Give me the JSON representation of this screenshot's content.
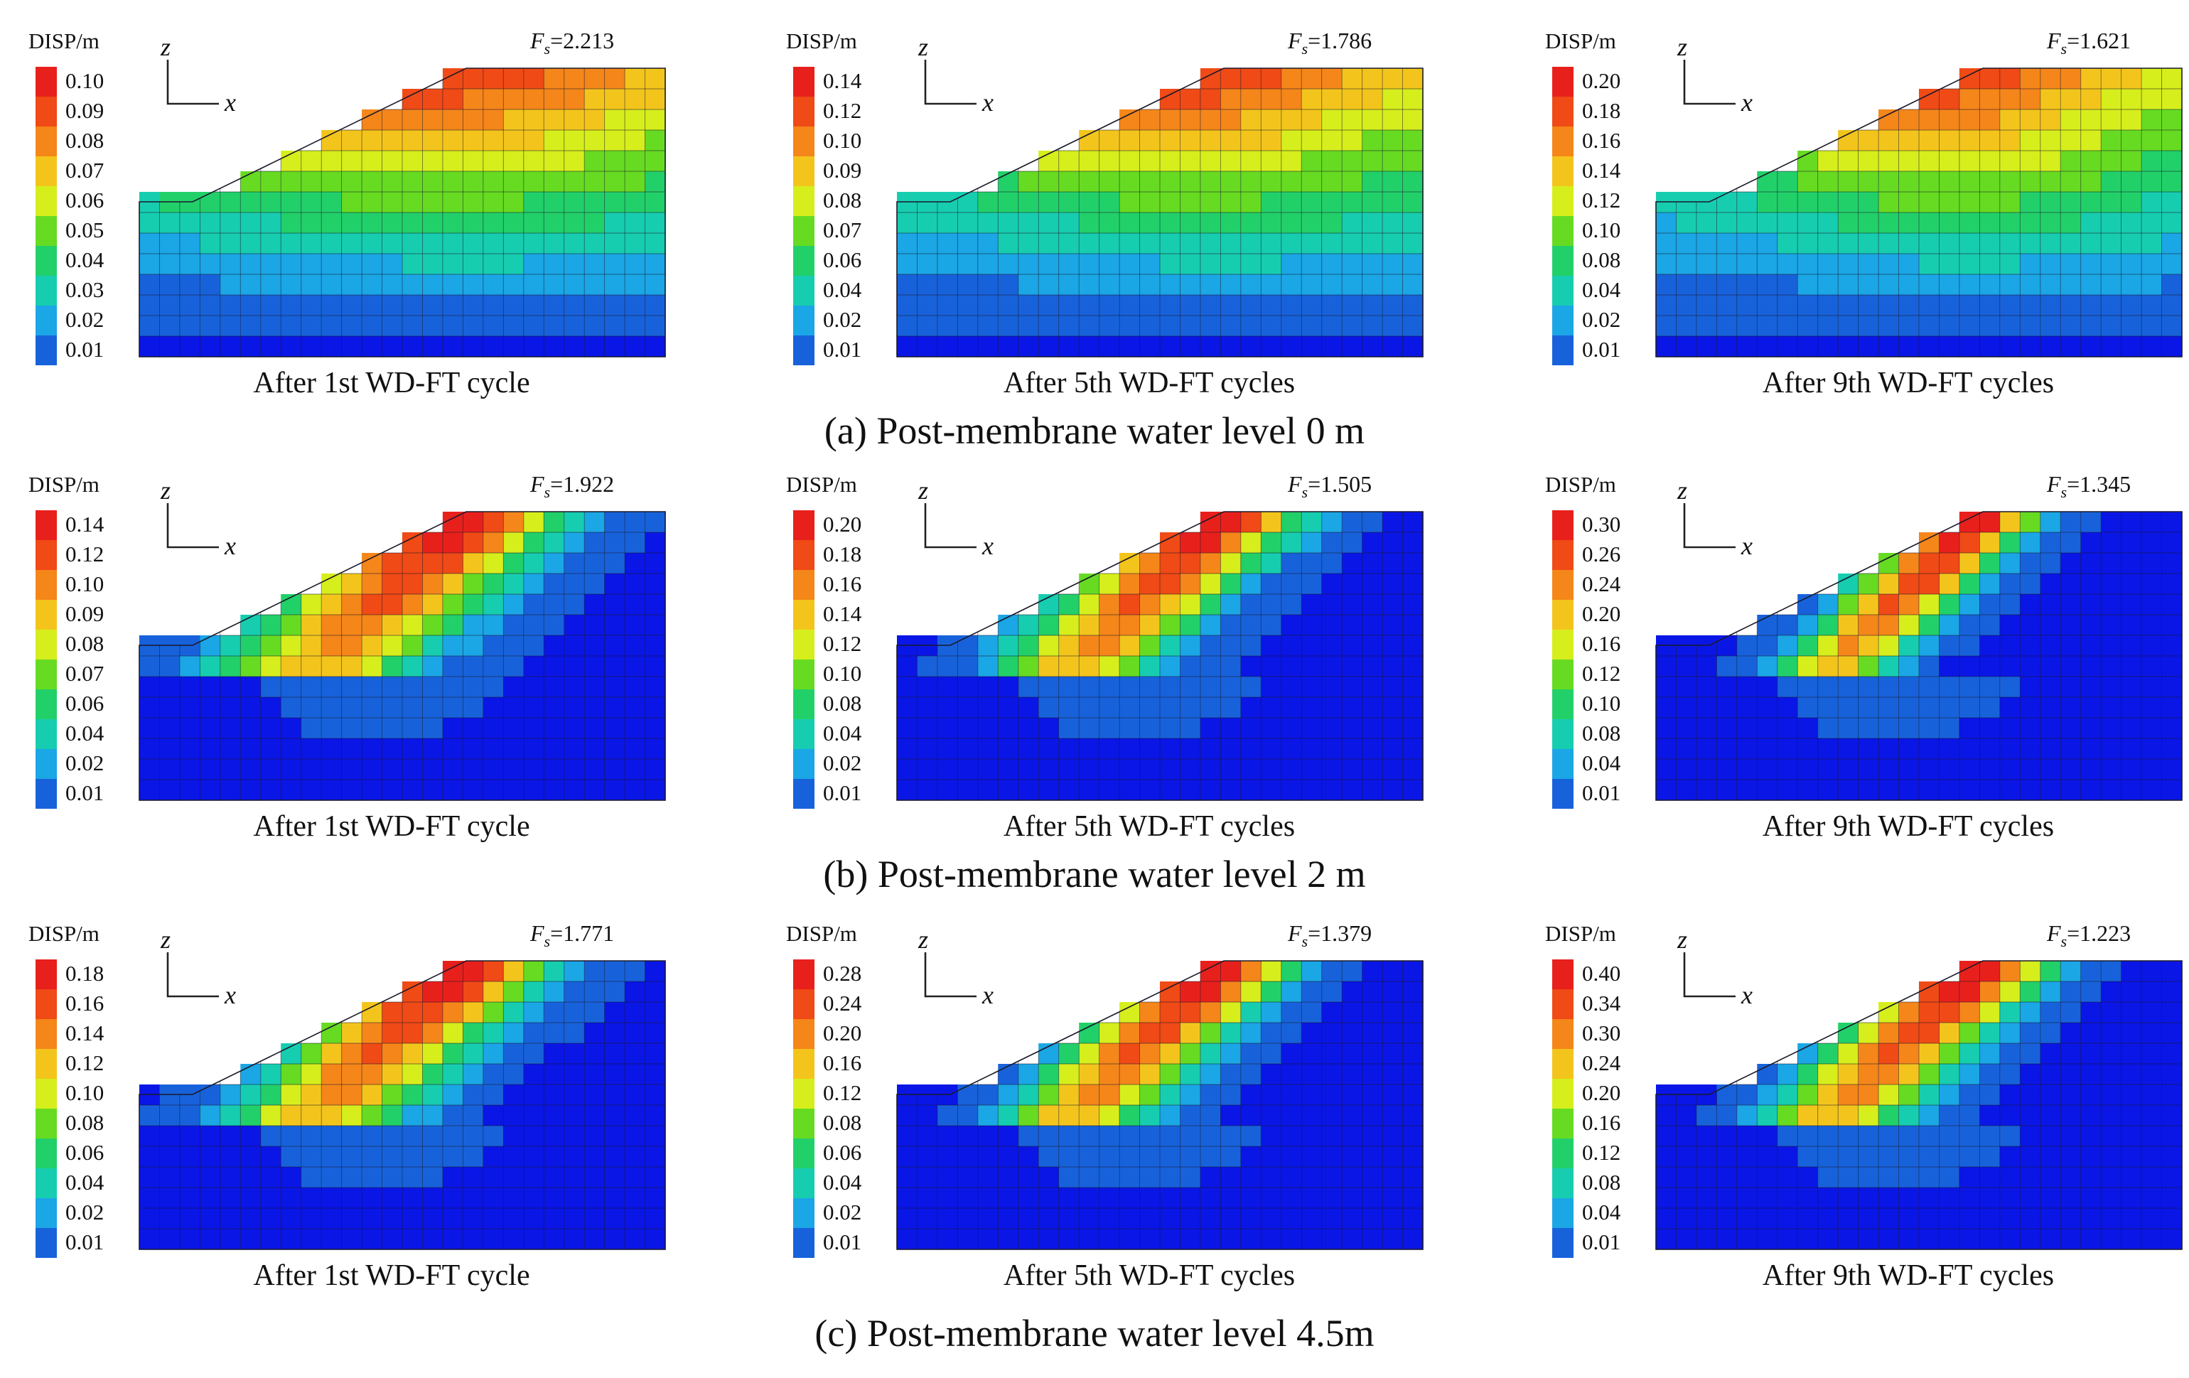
{
  "figure": {
    "rows": [
      {
        "caption": "(a) Post-membrane water level 0 m",
        "panels": [
          {
            "label": "After 1st  WD-FT cycle",
            "fs_symbol": "F",
            "fs_sub": "s",
            "fs_value": "=2.213",
            "legend_title": "DISP/m",
            "legend_ticks": [
              "0.10",
              "0.09",
              "0.08",
              "0.07",
              "0.06",
              "0.05",
              "0.04",
              "0.03",
              "0.02",
              "0.01"
            ],
            "pattern": "wave",
            "spread": 0.55
          },
          {
            "label": "After 5th  WD-FT cycles",
            "fs_symbol": "F",
            "fs_sub": "s",
            "fs_value": "=1.786",
            "legend_title": "DISP/m",
            "legend_ticks": [
              "0.14",
              "0.12",
              "0.10",
              "0.09",
              "0.08",
              "0.07",
              "0.06",
              "0.04",
              "0.02",
              "0.01"
            ],
            "pattern": "wave",
            "spread": 0.45
          },
          {
            "label": "After 9th  WD-FT cycles",
            "fs_symbol": "F",
            "fs_sub": "s",
            "fs_value": "=1.621",
            "legend_title": "DISP/m",
            "legend_ticks": [
              "0.20",
              "0.18",
              "0.16",
              "0.14",
              "0.12",
              "0.10",
              "0.08",
              "0.04",
              "0.02",
              "0.01"
            ],
            "pattern": "wave",
            "spread": 0.4
          }
        ]
      },
      {
        "caption": "(b) Post-membrane water level 2 m",
        "panels": [
          {
            "label": "After 1st  WD-FT cycle",
            "fs_symbol": "F",
            "fs_sub": "s",
            "fs_value": "=1.922",
            "legend_title": "DISP/m",
            "legend_ticks": [
              "0.14",
              "0.12",
              "0.10",
              "0.09",
              "0.08",
              "0.07",
              "0.06",
              "0.04",
              "0.02",
              "0.01"
            ],
            "pattern": "slide",
            "spread": 0.28
          },
          {
            "label": "After 5th  WD-FT cycles",
            "fs_symbol": "F",
            "fs_sub": "s",
            "fs_value": "=1.505",
            "legend_title": "DISP/m",
            "legend_ticks": [
              "0.20",
              "0.18",
              "0.16",
              "0.14",
              "0.12",
              "0.10",
              "0.08",
              "0.04",
              "0.02",
              "0.01"
            ],
            "pattern": "slide",
            "spread": 0.22
          },
          {
            "label": "After 9th  WD-FT cycles",
            "fs_symbol": "F",
            "fs_sub": "s",
            "fs_value": "=1.345",
            "legend_title": "DISP/m",
            "legend_ticks": [
              "0.30",
              "0.26",
              "0.24",
              "0.20",
              "0.16",
              "0.12",
              "0.10",
              "0.08",
              "0.04",
              "0.01"
            ],
            "pattern": "slide",
            "spread": 0.16
          }
        ]
      },
      {
        "caption": "(c) Post-membrane water level 4.5m",
        "panels": [
          {
            "label": "After 1st  WD-FT cycle",
            "fs_symbol": "F",
            "fs_sub": "s",
            "fs_value": "=1.771",
            "legend_title": "DISP/m",
            "legend_ticks": [
              "0.18",
              "0.16",
              "0.14",
              "0.12",
              "0.10",
              "0.08",
              "0.06",
              "0.04",
              "0.02",
              "0.01"
            ],
            "pattern": "slide",
            "spread": 0.24
          },
          {
            "label": "After 5th  WD-FT cycles",
            "fs_symbol": "F",
            "fs_sub": "s",
            "fs_value": "=1.379",
            "legend_title": "DISP/m",
            "legend_ticks": [
              "0.28",
              "0.24",
              "0.20",
              "0.16",
              "0.12",
              "0.08",
              "0.06",
              "0.04",
              "0.02",
              "0.01"
            ],
            "pattern": "slide",
            "spread": 0.2
          },
          {
            "label": "After 9th  WD-FT cycles",
            "fs_symbol": "F",
            "fs_sub": "s",
            "fs_value": "=1.223",
            "legend_title": "DISP/m",
            "legend_ticks": [
              "0.40",
              "0.34",
              "0.30",
              "0.24",
              "0.20",
              "0.16",
              "0.12",
              "0.08",
              "0.04",
              "0.01"
            ],
            "pattern": "slide",
            "spread": 0.2
          }
        ]
      }
    ],
    "axis_labels": {
      "vertical": "z",
      "horizontal": "x"
    },
    "colors": {
      "scale": [
        "#e8201c",
        "#f04a16",
        "#f5861a",
        "#f3c51c",
        "#d6ee1c",
        "#66db22",
        "#22d06a",
        "#17cdb0",
        "#1ba6e6",
        "#1762db",
        "#0a16e6"
      ],
      "mesh": "#1a1a2a",
      "text": "#111111"
    }
  }
}
